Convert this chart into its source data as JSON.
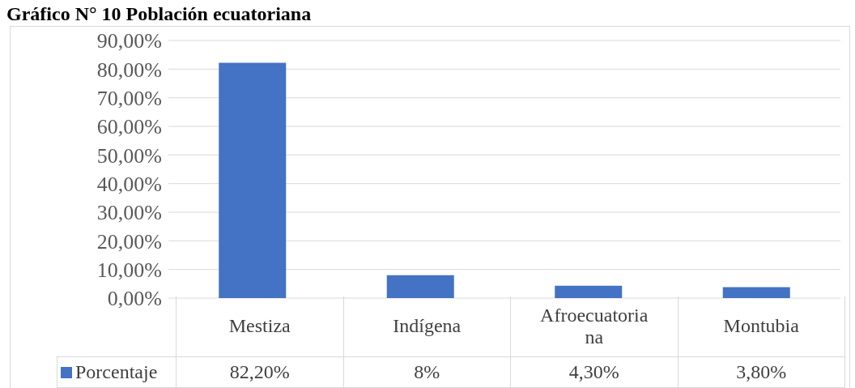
{
  "chart_data": {
    "type": "bar",
    "title": "Gráfico N° 10 Población ecuatoriana",
    "categories": [
      "Mestiza",
      "Indígena",
      "Afroecuatoriana",
      "Montubia"
    ],
    "series": [
      {
        "name": "Porcentaje",
        "color": "#4472c4",
        "values": [
          82.2,
          8,
          4.3,
          3.8
        ],
        "value_labels": [
          "82,20%",
          "8%",
          "4,30%",
          "3,80%"
        ]
      }
    ],
    "ylim": [
      0,
      90
    ],
    "yticks": [
      {
        "value": 0,
        "label": "0,00%"
      },
      {
        "value": 10,
        "label": "10,00%"
      },
      {
        "value": 20,
        "label": "20,00%"
      },
      {
        "value": 30,
        "label": "30,00%"
      },
      {
        "value": 40,
        "label": "40,00%"
      },
      {
        "value": 50,
        "label": "50,00%"
      },
      {
        "value": 60,
        "label": "60,00%"
      },
      {
        "value": 70,
        "label": "70,00%"
      },
      {
        "value": 80,
        "label": "80,00%"
      },
      {
        "value": 90,
        "label": "90,00%"
      }
    ],
    "grid": "y",
    "legend": "bottom"
  }
}
